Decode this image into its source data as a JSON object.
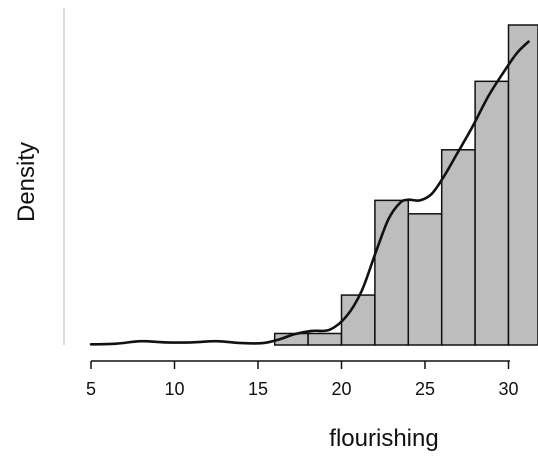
{
  "chart_data": {
    "type": "bar",
    "xlabel": "flourishing",
    "ylabel": "Density",
    "xlim": [
      5,
      31.2
    ],
    "ylim": [
      0,
      0.5
    ],
    "x_ticks": [
      "5",
      "10",
      "15",
      "20",
      "25",
      "30"
    ],
    "x_tick_values": [
      5,
      10,
      15,
      20,
      25,
      30
    ],
    "grid": false,
    "bar_fill": "#bdbdbd",
    "bar_stroke": "#111111",
    "curve_color": "#111111",
    "histogram": {
      "bin_width": 2,
      "bins": [
        {
          "start": 16,
          "end": 18,
          "density": 0.018
        },
        {
          "start": 18,
          "end": 20,
          "density": 0.018
        },
        {
          "start": 20,
          "end": 22,
          "density": 0.078
        },
        {
          "start": 22,
          "end": 24,
          "density": 0.226
        },
        {
          "start": 24,
          "end": 26,
          "density": 0.205
        },
        {
          "start": 26,
          "end": 28,
          "density": 0.305
        },
        {
          "start": 28,
          "end": 30,
          "density": 0.412
        },
        {
          "start": 30,
          "end": 32,
          "density": 0.5
        }
      ]
    },
    "density_curve": {
      "x": [
        5,
        6.5,
        8,
        9.5,
        11,
        12.5,
        14,
        15.3,
        16.3,
        17.2,
        18.2,
        19.3,
        20.3,
        21.2,
        22,
        22.8,
        23.5,
        24,
        24.7,
        25.4,
        26.1,
        26.9,
        27.8,
        28.8,
        29.7,
        30.5,
        31.2
      ],
      "y": [
        0.001,
        0.002,
        0.006,
        0.004,
        0.004,
        0.006,
        0.003,
        0.003,
        0.009,
        0.017,
        0.022,
        0.024,
        0.045,
        0.084,
        0.141,
        0.196,
        0.222,
        0.227,
        0.226,
        0.236,
        0.262,
        0.298,
        0.339,
        0.389,
        0.426,
        0.456,
        0.474
      ]
    }
  }
}
